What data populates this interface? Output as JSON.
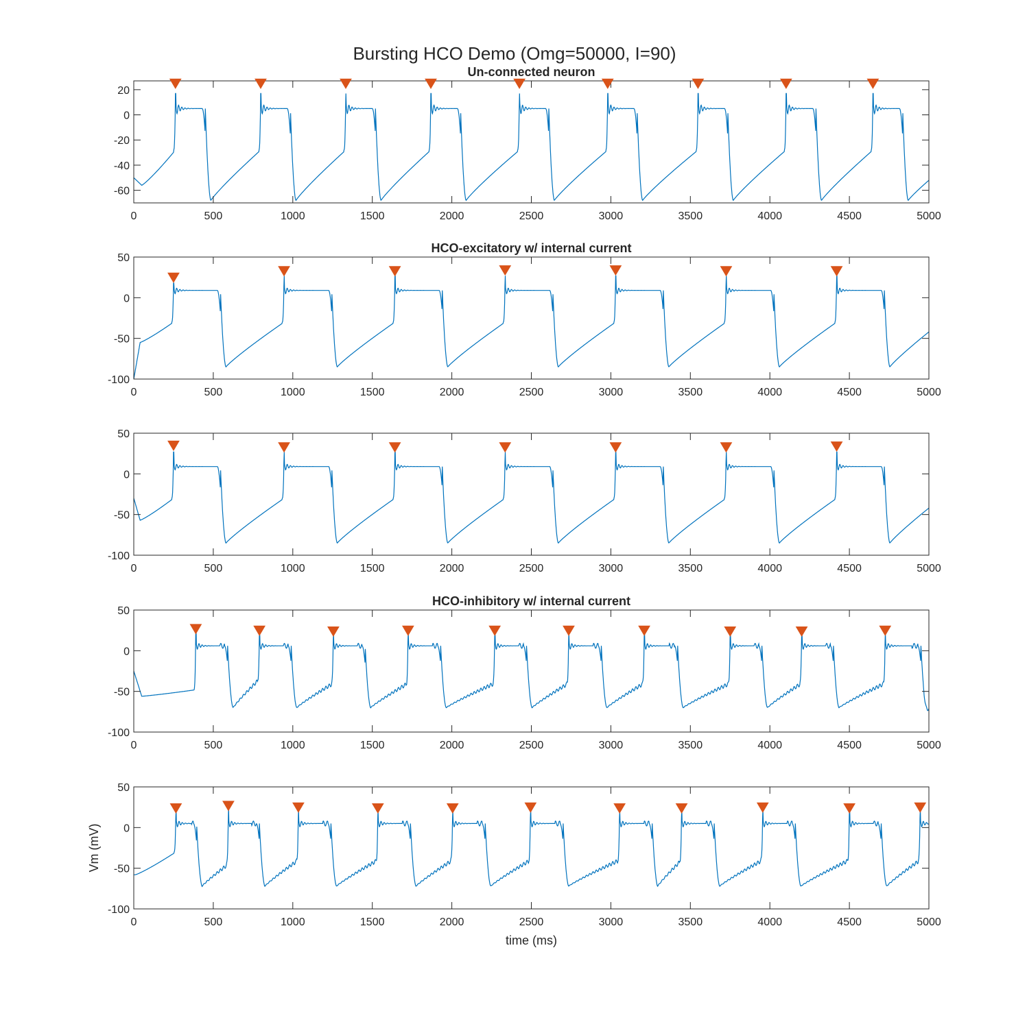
{
  "figure": {
    "title": "Bursting HCO Demo (Omg=50000, I=90)"
  },
  "colors": {
    "trace": "#0072BD",
    "marker": "#D95319",
    "axes": "#262626"
  },
  "chart_data": [
    {
      "type": "line",
      "title": "Un-connected neuron",
      "xlabel": "",
      "ylabel": "",
      "xlim": [
        0,
        5000
      ],
      "ylim": [
        -70,
        27
      ],
      "xticks": [
        0,
        500,
        1000,
        1500,
        2000,
        2500,
        3000,
        3500,
        4000,
        4500,
        5000
      ],
      "yticks": [
        -60,
        -40,
        -20,
        0,
        20
      ],
      "grid": false,
      "trace": {
        "v0": -50,
        "vmin": -56,
        "tmin": 50,
        "plateau": 5,
        "trough": -68,
        "spike": 17,
        "late_dip": false
      },
      "bursts": [
        {
          "on": 262,
          "off": 450,
          "pre": -28,
          "peak": 17
        },
        {
          "on": 798,
          "off": 985,
          "pre": -28,
          "peak": 17
        },
        {
          "on": 1333,
          "off": 1520,
          "pre": -28,
          "peak": 17
        },
        {
          "on": 1868,
          "off": 2055,
          "pre": -28,
          "peak": 17
        },
        {
          "on": 2425,
          "off": 2610,
          "pre": -28,
          "peak": 17
        },
        {
          "on": 2980,
          "off": 3165,
          "pre": -28,
          "peak": 17
        },
        {
          "on": 3548,
          "off": 3735,
          "pre": -28,
          "peak": 17
        },
        {
          "on": 4102,
          "off": 4290,
          "pre": -28,
          "peak": 17
        },
        {
          "on": 4648,
          "off": 4835,
          "pre": -28,
          "peak": 17
        }
      ],
      "end_value": -52,
      "markers": {
        "x": [
          262,
          798,
          1333,
          1868,
          2425,
          2980,
          3548,
          4102,
          4648
        ],
        "y": [
          25,
          25,
          25,
          25,
          25,
          25,
          25,
          25,
          25
        ]
      }
    },
    {
      "type": "line",
      "title": "HCO-excitatory w/ internal current",
      "xlabel": "",
      "ylabel": "",
      "xlim": [
        0,
        5000
      ],
      "ylim": [
        -100,
        50
      ],
      "xticks": [
        0,
        500,
        1000,
        1500,
        2000,
        2500,
        3000,
        3500,
        4000,
        4500,
        5000
      ],
      "yticks": [
        -100,
        -50,
        0,
        50
      ],
      "grid": false,
      "trace": {
        "v0": -100,
        "vmin": -55,
        "tmin": 40,
        "plateau": 9,
        "trough": -85,
        "spike": 26,
        "late_dip": false
      },
      "bursts": [
        {
          "on": 250,
          "off": 545,
          "pre": -30,
          "peak": 18
        },
        {
          "on": 945,
          "off": 1245,
          "pre": -30,
          "peak": 27
        },
        {
          "on": 1642,
          "off": 1940,
          "pre": -30,
          "peak": 27
        },
        {
          "on": 2335,
          "off": 2635,
          "pre": -30,
          "peak": 27
        },
        {
          "on": 3030,
          "off": 3330,
          "pre": -30,
          "peak": 27
        },
        {
          "on": 3725,
          "off": 4025,
          "pre": -30,
          "peak": 27
        },
        {
          "on": 4420,
          "off": 4720,
          "pre": -30,
          "peak": 27
        }
      ],
      "end_value": -42,
      "markers": {
        "x": [
          250,
          945,
          1642,
          2335,
          3030,
          3725,
          4420
        ],
        "y": [
          25,
          33,
          33,
          34,
          34,
          33,
          33
        ]
      }
    },
    {
      "type": "line",
      "title": "",
      "xlabel": "",
      "ylabel": "",
      "xlim": [
        0,
        5000
      ],
      "ylim": [
        -100,
        50
      ],
      "xticks": [
        0,
        500,
        1000,
        1500,
        2000,
        2500,
        3000,
        3500,
        4000,
        4500,
        5000
      ],
      "yticks": [
        -100,
        -50,
        0,
        50
      ],
      "grid": false,
      "trace": {
        "v0": -30,
        "vmin": -57,
        "tmin": 40,
        "plateau": 9,
        "trough": -85,
        "spike": 26,
        "late_dip": false
      },
      "bursts": [
        {
          "on": 250,
          "off": 545,
          "pre": -30,
          "peak": 27
        },
        {
          "on": 945,
          "off": 1245,
          "pre": -30,
          "peak": 27
        },
        {
          "on": 1642,
          "off": 1940,
          "pre": -30,
          "peak": 27
        },
        {
          "on": 2335,
          "off": 2635,
          "pre": -30,
          "peak": 27
        },
        {
          "on": 3030,
          "off": 3330,
          "pre": -30,
          "peak": 27
        },
        {
          "on": 3725,
          "off": 4025,
          "pre": -30,
          "peak": 27
        },
        {
          "on": 4420,
          "off": 4720,
          "pre": -30,
          "peak": 27
        }
      ],
      "end_value": -42,
      "markers": {
        "x": [
          250,
          945,
          1642,
          2335,
          3030,
          3725,
          4420
        ],
        "y": [
          35,
          33,
          33,
          33,
          33,
          33,
          34
        ]
      }
    },
    {
      "type": "line",
      "title": "HCO-inhibitory w/ internal current",
      "xlabel": "",
      "ylabel": "",
      "xlim": [
        0,
        5000
      ],
      "ylim": [
        -100,
        50
      ],
      "xticks": [
        0,
        500,
        1000,
        1500,
        2000,
        2500,
        3000,
        3500,
        4000,
        4500,
        5000
      ],
      "yticks": [
        -100,
        -50,
        0,
        50
      ],
      "grid": false,
      "trace": {
        "v0": -25,
        "vmin": -56,
        "tmin": 50,
        "plateau": 6,
        "trough": -70,
        "spike": 22,
        "late_dip": true
      },
      "bursts": [
        {
          "on": 390,
          "off": 590,
          "pre": -48,
          "peak": 26
        },
        {
          "on": 790,
          "off": 990,
          "pre": -35,
          "peak": 24
        },
        {
          "on": 1255,
          "off": 1455,
          "pre": -40,
          "peak": 24
        },
        {
          "on": 1725,
          "off": 1930,
          "pre": -40,
          "peak": 24
        },
        {
          "on": 2270,
          "off": 2470,
          "pre": -40,
          "peak": 24
        },
        {
          "on": 2735,
          "off": 2940,
          "pre": -40,
          "peak": 24
        },
        {
          "on": 3210,
          "off": 3420,
          "pre": -40,
          "peak": 24
        },
        {
          "on": 3750,
          "off": 3950,
          "pre": -40,
          "peak": 24
        },
        {
          "on": 4200,
          "off": 4400,
          "pre": -40,
          "peak": 24
        },
        {
          "on": 4725,
          "off": 4950,
          "pre": -40,
          "peak": 24
        }
      ],
      "end_value": -73,
      "markers": {
        "x": [
          390,
          790,
          1255,
          1725,
          2270,
          2735,
          3210,
          3750,
          4200,
          4725
        ],
        "y": [
          27,
          25,
          24,
          25,
          25,
          25,
          25,
          24,
          24,
          25
        ]
      }
    },
    {
      "type": "line",
      "title": "",
      "xlabel": "time (ms)",
      "ylabel": "Vm (mV)",
      "xlim": [
        0,
        5000
      ],
      "ylim": [
        -100,
        50
      ],
      "xticks": [
        0,
        500,
        1000,
        1500,
        2000,
        2500,
        3000,
        3500,
        4000,
        4500,
        5000
      ],
      "yticks": [
        -100,
        -50,
        0,
        50
      ],
      "grid": false,
      "trace": {
        "v0": -58,
        "vmin": -58,
        "tmin": 10,
        "plateau": 5,
        "trough": -72,
        "spike": 22,
        "late_dip": true
      },
      "bursts": [
        {
          "on": 265,
          "off": 395,
          "pre": -30,
          "peak": 24
        },
        {
          "on": 595,
          "off": 790,
          "pre": -45,
          "peak": 26
        },
        {
          "on": 1035,
          "off": 1240,
          "pre": -40,
          "peak": 24
        },
        {
          "on": 1535,
          "off": 1740,
          "pre": -40,
          "peak": 24
        },
        {
          "on": 2005,
          "off": 2210,
          "pre": -40,
          "peak": 22
        },
        {
          "on": 2495,
          "off": 2700,
          "pre": -40,
          "peak": 24
        },
        {
          "on": 3055,
          "off": 3260,
          "pre": -40,
          "peak": 22
        },
        {
          "on": 3445,
          "off": 3650,
          "pre": -40,
          "peak": 24
        },
        {
          "on": 3955,
          "off": 4160,
          "pre": -40,
          "peak": 24
        },
        {
          "on": 4500,
          "off": 4700,
          "pre": -40,
          "peak": 24
        },
        {
          "on": 4945,
          "off": 5100,
          "pre": -40,
          "peak": 25
        }
      ],
      "end_value": 5,
      "markers": {
        "x": [
          265,
          595,
          1035,
          1535,
          2005,
          2495,
          3055,
          3445,
          3955,
          4500,
          4945
        ],
        "y": [
          24,
          27,
          25,
          24,
          24,
          25,
          24,
          24,
          25,
          24,
          25
        ]
      }
    }
  ]
}
